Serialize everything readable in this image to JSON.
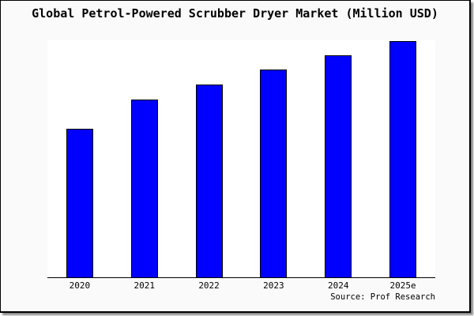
{
  "chart_data": {
    "type": "bar",
    "title": "Global Petrol-Powered Scrubber Dryer Market (Million USD)",
    "categories": [
      "2020",
      "2021",
      "2022",
      "2023",
      "2024",
      "2025e"
    ],
    "values": [
      188,
      225,
      244,
      263,
      281,
      299
    ],
    "value_note": "no y-axis labels shown; values are relative bar heights measured against plot scale",
    "xlabel": "",
    "ylabel": "",
    "ylim": [
      0,
      300
    ],
    "grid": false,
    "legend": null,
    "source_note": "Source: Prof Research"
  },
  "colors": {
    "bar_fill": "#0000ff",
    "bar_border": "#000000",
    "plot_background": "#ffffff",
    "frame_background": "#fafafa",
    "axis_line": "#000000",
    "text": "#000000",
    "frame_border": "#000000"
  }
}
